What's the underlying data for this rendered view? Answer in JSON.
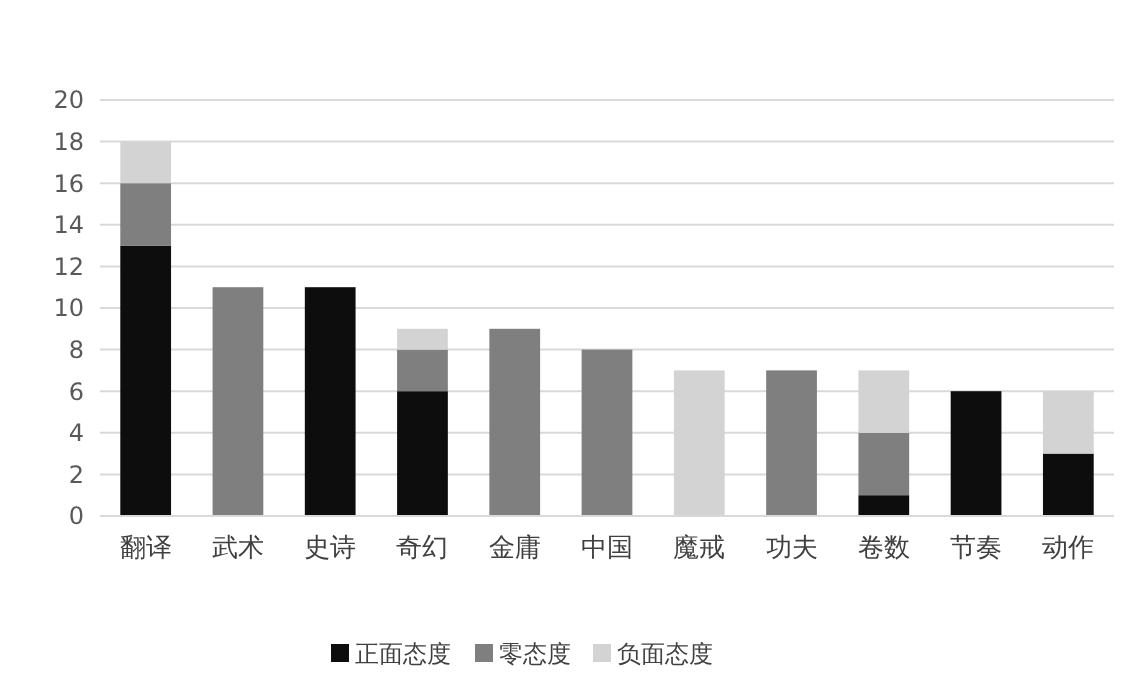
{
  "chart_data": {
    "type": "bar",
    "stacked": true,
    "categories": [
      "翻译",
      "武术",
      "史诗",
      "奇幻",
      "金庸",
      "中国",
      "魔戒",
      "功夫",
      "卷数",
      "节奏",
      "动作"
    ],
    "series": [
      {
        "name": "正面态度",
        "color": "#0d0d0d",
        "values": [
          13,
          0,
          11,
          6,
          0,
          0,
          0,
          0,
          1,
          6,
          3
        ]
      },
      {
        "name": "零态度",
        "color": "#7f7f7f",
        "values": [
          3,
          11,
          0,
          2,
          9,
          8,
          0,
          7,
          3,
          0,
          0
        ]
      },
      {
        "name": "负面态度",
        "color": "#d3d3d3",
        "values": [
          2,
          0,
          0,
          1,
          0,
          0,
          7,
          0,
          3,
          0,
          3
        ]
      }
    ],
    "ylim": [
      0,
      20
    ],
    "yticks": [
      0,
      2,
      4,
      6,
      8,
      10,
      12,
      14,
      16,
      18,
      20
    ],
    "grid": "y",
    "legend": "bottom"
  }
}
